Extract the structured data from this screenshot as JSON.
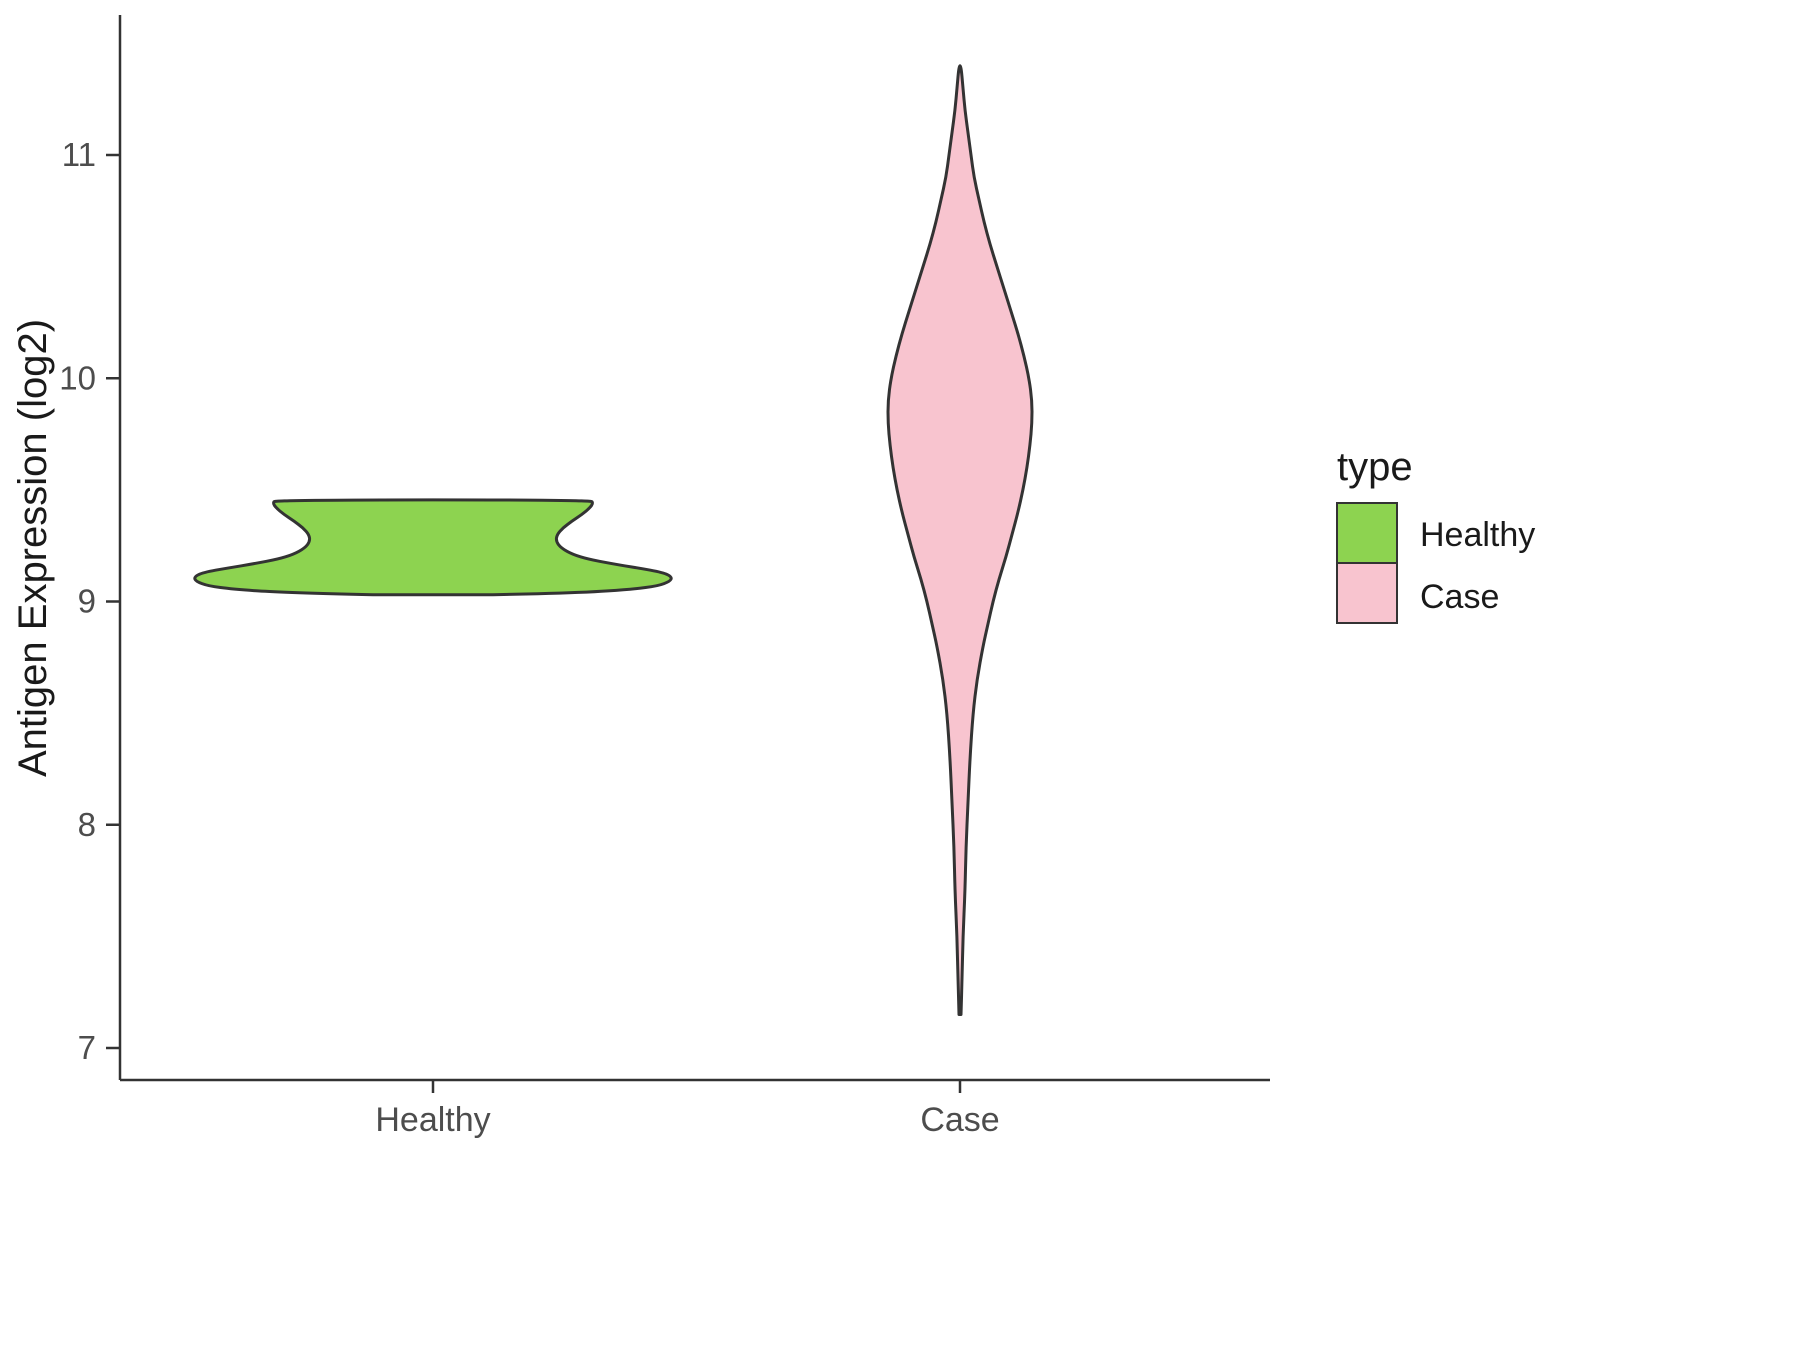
{
  "chart_data": {
    "type": "violin",
    "title": "",
    "xlabel": "",
    "ylabel": "Antigen Expression (log2)",
    "categories": [
      "Healthy",
      "Case"
    ],
    "y_axis": {
      "min": 7,
      "max": 11.6,
      "ticks": [
        {
          "value": 7,
          "label": "7"
        },
        {
          "value": 8,
          "label": "8"
        },
        {
          "value": 9,
          "label": "9"
        },
        {
          "value": 10,
          "label": "10"
        },
        {
          "value": 11,
          "label": "11"
        }
      ]
    },
    "legend": {
      "title": "type",
      "entries": [
        {
          "label": "Healthy",
          "color": "#8dd350"
        },
        {
          "label": "Case",
          "color": "#f8c4cf"
        }
      ]
    },
    "series": [
      {
        "name": "Healthy",
        "color": "#8dd350",
        "value_range": [
          9.03,
          9.455
        ],
        "profile": [
          [
            9.03,
            60
          ],
          [
            9.04,
            150
          ],
          [
            9.055,
            200
          ],
          [
            9.07,
            225
          ],
          [
            9.09,
            237
          ],
          [
            9.11,
            239
          ],
          [
            9.13,
            230
          ],
          [
            9.15,
            205
          ],
          [
            9.17,
            178
          ],
          [
            9.19,
            155
          ],
          [
            9.21,
            140
          ],
          [
            9.24,
            128
          ],
          [
            9.27,
            123
          ],
          [
            9.3,
            124
          ],
          [
            9.33,
            130
          ],
          [
            9.36,
            139
          ],
          [
            9.39,
            149
          ],
          [
            9.42,
            157
          ],
          [
            9.44,
            160
          ],
          [
            9.455,
            158
          ]
        ]
      },
      {
        "name": "Case",
        "color": "#f8c4cf",
        "value_range": [
          7.15,
          11.4
        ],
        "profile": [
          [
            7.15,
            1
          ],
          [
            7.3,
            2
          ],
          [
            7.5,
            3
          ],
          [
            7.7,
            5
          ],
          [
            7.9,
            6
          ],
          [
            8.1,
            8
          ],
          [
            8.3,
            10
          ],
          [
            8.5,
            13
          ],
          [
            8.65,
            17
          ],
          [
            8.8,
            23
          ],
          [
            8.9,
            28
          ],
          [
            9.0,
            33
          ],
          [
            9.1,
            39
          ],
          [
            9.2,
            46
          ],
          [
            9.3,
            52
          ],
          [
            9.4,
            58
          ],
          [
            9.5,
            63
          ],
          [
            9.6,
            67
          ],
          [
            9.7,
            70
          ],
          [
            9.8,
            72
          ],
          [
            9.9,
            72
          ],
          [
            10.0,
            69
          ],
          [
            10.1,
            64
          ],
          [
            10.2,
            58
          ],
          [
            10.3,
            51
          ],
          [
            10.4,
            44
          ],
          [
            10.5,
            37
          ],
          [
            10.6,
            30
          ],
          [
            10.7,
            24
          ],
          [
            10.8,
            19
          ],
          [
            10.9,
            14
          ],
          [
            11.0,
            11
          ],
          [
            11.1,
            8
          ],
          [
            11.2,
            5
          ],
          [
            11.3,
            3
          ],
          [
            11.4,
            1
          ]
        ]
      }
    ],
    "style": {
      "outline_color": "#333333",
      "axis_color": "#333333",
      "tick_label_color": "#4d4d4d",
      "text_color": "#1a1a1a",
      "background": "#ffffff"
    }
  }
}
